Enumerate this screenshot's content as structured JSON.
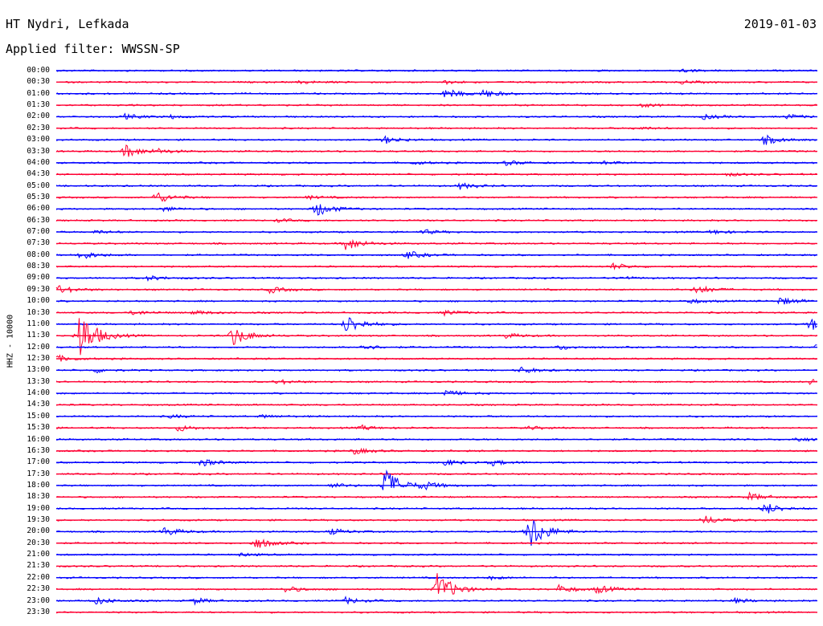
{
  "header": {
    "station": "HT Nydri, Lefkada",
    "date": "2019-01-03",
    "filter": "Applied filter: WWSSN-SP"
  },
  "axis": {
    "channel_label": "HHZ - 10000"
  },
  "colors": {
    "even_trace": "#0000ff",
    "odd_trace": "#ff0033"
  },
  "time_labels": [
    "00:00",
    "00:30",
    "01:00",
    "01:30",
    "02:00",
    "02:30",
    "03:00",
    "03:30",
    "04:00",
    "04:30",
    "05:00",
    "05:30",
    "06:00",
    "06:30",
    "07:00",
    "07:30",
    "08:00",
    "08:30",
    "09:00",
    "09:30",
    "10:00",
    "10:30",
    "11:00",
    "11:30",
    "12:00",
    "12:30",
    "13:00",
    "13:30",
    "14:00",
    "14:30",
    "15:00",
    "15:30",
    "16:00",
    "16:30",
    "17:00",
    "17:30",
    "18:00",
    "18:30",
    "19:00",
    "19:30",
    "20:00",
    "20:30",
    "21:00",
    "21:30",
    "22:00",
    "22:30",
    "23:00",
    "23:30"
  ],
  "events": [
    {
      "row": 0,
      "t": 0.82,
      "amp": 2
    },
    {
      "row": 1,
      "t": 0.32,
      "amp": 2
    },
    {
      "row": 1,
      "t": 0.51,
      "amp": 2
    },
    {
      "row": 1,
      "t": 0.82,
      "amp": 2
    },
    {
      "row": 2,
      "t": 0.51,
      "amp": 6
    },
    {
      "row": 2,
      "t": 0.56,
      "amp": 5
    },
    {
      "row": 3,
      "t": 0.77,
      "amp": 2
    },
    {
      "row": 4,
      "t": 0.09,
      "amp": 3
    },
    {
      "row": 4,
      "t": 0.15,
      "amp": 2
    },
    {
      "row": 4,
      "t": 0.85,
      "amp": 3
    },
    {
      "row": 4,
      "t": 0.96,
      "amp": 3
    },
    {
      "row": 5,
      "t": 0.76,
      "amp": 2
    },
    {
      "row": 6,
      "t": 0.43,
      "amp": 5
    },
    {
      "row": 6,
      "t": 0.93,
      "amp": 6
    },
    {
      "row": 7,
      "t": 0.09,
      "amp": 9
    },
    {
      "row": 7,
      "t": 0.13,
      "amp": 3
    },
    {
      "row": 8,
      "t": 0.47,
      "amp": 2
    },
    {
      "row": 8,
      "t": 0.59,
      "amp": 3
    },
    {
      "row": 8,
      "t": 0.72,
      "amp": 2
    },
    {
      "row": 9,
      "t": 0.88,
      "amp": 2
    },
    {
      "row": 10,
      "t": 0.53,
      "amp": 4
    },
    {
      "row": 11,
      "t": 0.13,
      "amp": 8
    },
    {
      "row": 11,
      "t": 0.33,
      "amp": 2
    },
    {
      "row": 12,
      "t": 0.14,
      "amp": 3
    },
    {
      "row": 12,
      "t": 0.34,
      "amp": 10
    },
    {
      "row": 13,
      "t": 0.29,
      "amp": 2
    },
    {
      "row": 14,
      "t": 0.05,
      "amp": 2
    },
    {
      "row": 14,
      "t": 0.48,
      "amp": 3
    },
    {
      "row": 14,
      "t": 0.86,
      "amp": 3
    },
    {
      "row": 15,
      "t": 0.38,
      "amp": 9
    },
    {
      "row": 16,
      "t": 0.03,
      "amp": 6
    },
    {
      "row": 16,
      "t": 0.46,
      "amp": 5
    },
    {
      "row": 17,
      "t": 0.73,
      "amp": 4
    },
    {
      "row": 18,
      "t": 0.12,
      "amp": 3
    },
    {
      "row": 18,
      "t": 0.74,
      "amp": 2
    },
    {
      "row": 19,
      "t": 0.0,
      "amp": 6
    },
    {
      "row": 19,
      "t": 0.28,
      "amp": 4
    },
    {
      "row": 19,
      "t": 0.84,
      "amp": 6
    },
    {
      "row": 20,
      "t": 0.83,
      "amp": 3
    },
    {
      "row": 20,
      "t": 0.95,
      "amp": 5
    },
    {
      "row": 21,
      "t": 0.1,
      "amp": 3
    },
    {
      "row": 21,
      "t": 0.18,
      "amp": 3
    },
    {
      "row": 21,
      "t": 0.51,
      "amp": 3
    },
    {
      "row": 22,
      "t": 0.38,
      "amp": 13
    },
    {
      "row": 22,
      "t": 0.99,
      "amp": 8
    },
    {
      "row": 23,
      "t": 0.03,
      "amp": 34
    },
    {
      "row": 23,
      "t": 0.23,
      "amp": 14
    },
    {
      "row": 23,
      "t": 0.59,
      "amp": 3
    },
    {
      "row": 24,
      "t": 0.4,
      "amp": 4
    },
    {
      "row": 24,
      "t": 0.66,
      "amp": 3
    },
    {
      "row": 24,
      "t": 1.0,
      "amp": 10
    },
    {
      "row": 25,
      "t": 0.0,
      "amp": 4
    },
    {
      "row": 26,
      "t": 0.05,
      "amp": 3
    },
    {
      "row": 26,
      "t": 0.61,
      "amp": 4
    },
    {
      "row": 27,
      "t": 0.29,
      "amp": 3
    },
    {
      "row": 27,
      "t": 0.99,
      "amp": 3
    },
    {
      "row": 28,
      "t": 0.51,
      "amp": 4
    },
    {
      "row": 30,
      "t": 0.15,
      "amp": 2
    },
    {
      "row": 30,
      "t": 0.27,
      "amp": 2
    },
    {
      "row": 31,
      "t": 0.16,
      "amp": 4
    },
    {
      "row": 31,
      "t": 0.4,
      "amp": 3
    },
    {
      "row": 31,
      "t": 0.62,
      "amp": 2
    },
    {
      "row": 32,
      "t": 0.97,
      "amp": 3
    },
    {
      "row": 33,
      "t": 0.39,
      "amp": 4
    },
    {
      "row": 34,
      "t": 0.19,
      "amp": 5
    },
    {
      "row": 34,
      "t": 0.51,
      "amp": 4
    },
    {
      "row": 34,
      "t": 0.57,
      "amp": 4
    },
    {
      "row": 36,
      "t": 0.36,
      "amp": 3
    },
    {
      "row": 36,
      "t": 0.43,
      "amp": 24
    },
    {
      "row": 36,
      "t": 0.48,
      "amp": 5
    },
    {
      "row": 37,
      "t": 0.91,
      "amp": 5
    },
    {
      "row": 38,
      "t": 0.93,
      "amp": 8
    },
    {
      "row": 39,
      "t": 0.85,
      "amp": 6
    },
    {
      "row": 40,
      "t": 0.14,
      "amp": 6
    },
    {
      "row": 40,
      "t": 0.36,
      "amp": 4
    },
    {
      "row": 40,
      "t": 0.62,
      "amp": 26
    },
    {
      "row": 40,
      "t": 1.0,
      "amp": 5
    },
    {
      "row": 41,
      "t": 0.26,
      "amp": 8
    },
    {
      "row": 42,
      "t": 0.24,
      "amp": 2
    },
    {
      "row": 44,
      "t": 0.57,
      "amp": 2
    },
    {
      "row": 45,
      "t": 0.3,
      "amp": 4
    },
    {
      "row": 45,
      "t": 0.5,
      "amp": 22
    },
    {
      "row": 45,
      "t": 0.66,
      "amp": 5
    },
    {
      "row": 45,
      "t": 0.71,
      "amp": 5
    },
    {
      "row": 46,
      "t": 0.05,
      "amp": 5
    },
    {
      "row": 46,
      "t": 0.18,
      "amp": 4
    },
    {
      "row": 46,
      "t": 0.38,
      "amp": 4
    },
    {
      "row": 46,
      "t": 0.89,
      "amp": 3
    }
  ]
}
